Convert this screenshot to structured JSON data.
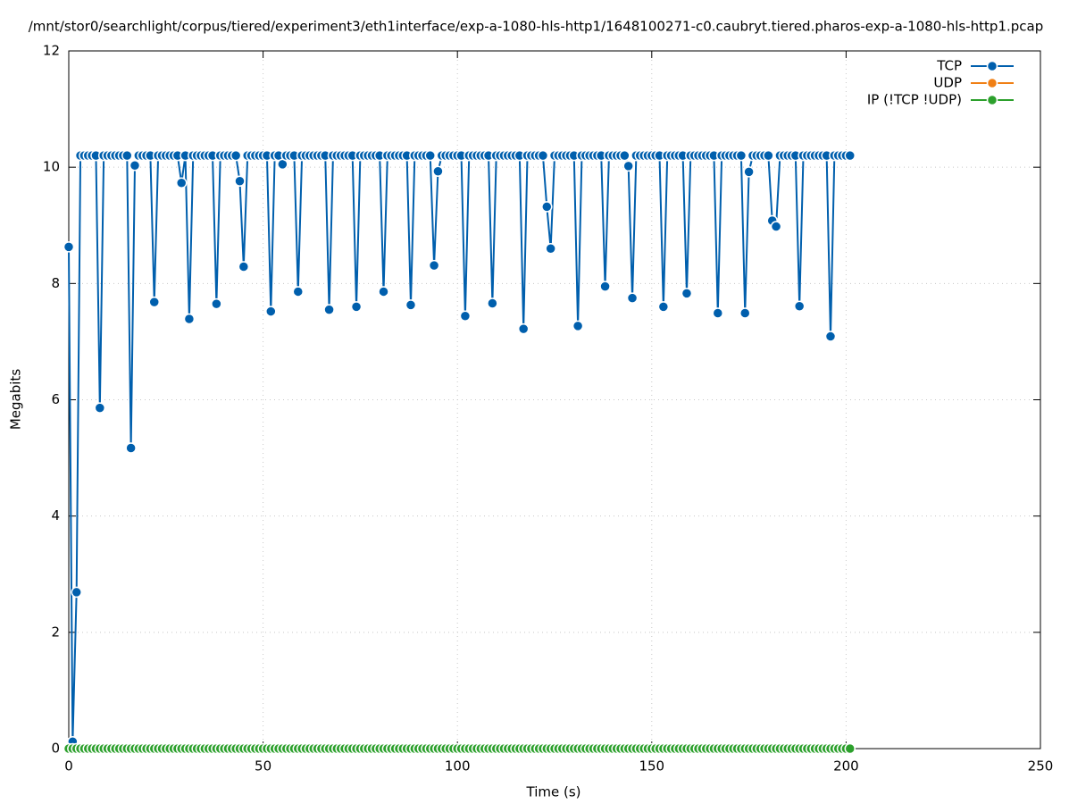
{
  "chart_data": {
    "type": "line",
    "title": "/mnt/stor0/searchlight/corpus/tiered/experiment3/eth1interface/exp-a-1080-hls-http1/1648100271-c0.caubryt.tiered.pharos-exp-a-1080-hls-http1.pcap",
    "x_label": "Time (s)",
    "y_label": "Megabits",
    "xlim": [
      0,
      250
    ],
    "xticks": [
      0,
      50,
      100,
      150,
      200,
      250
    ],
    "ylim": [
      0,
      12
    ],
    "yticks": [
      0,
      2,
      4,
      6,
      8,
      10,
      12
    ],
    "grid": true,
    "legend": "top-right",
    "x": [
      0,
      1,
      2,
      3,
      4,
      5,
      6,
      7,
      8,
      9,
      10,
      11,
      12,
      13,
      14,
      15,
      16,
      17,
      18,
      19,
      20,
      21,
      22,
      23,
      24,
      25,
      26,
      27,
      28,
      29,
      30,
      31,
      32,
      33,
      34,
      35,
      36,
      37,
      38,
      39,
      40,
      41,
      42,
      43,
      44,
      45,
      46,
      47,
      48,
      49,
      50,
      51,
      52,
      53,
      54,
      55,
      56,
      57,
      58,
      59,
      60,
      61,
      62,
      63,
      64,
      65,
      66,
      67,
      68,
      69,
      70,
      71,
      72,
      73,
      74,
      75,
      76,
      77,
      78,
      79,
      80,
      81,
      82,
      83,
      84,
      85,
      86,
      87,
      88,
      89,
      90,
      91,
      92,
      93,
      94,
      95,
      96,
      97,
      98,
      99,
      100,
      101,
      102,
      103,
      104,
      105,
      106,
      107,
      108,
      109,
      110,
      111,
      112,
      113,
      114,
      115,
      116,
      117,
      118,
      119,
      120,
      121,
      122,
      123,
      124,
      125,
      126,
      127,
      128,
      129,
      130,
      131,
      132,
      133,
      134,
      135,
      136,
      137,
      138,
      139,
      140,
      141,
      142,
      143,
      144,
      145,
      146,
      147,
      148,
      149,
      150,
      151,
      152,
      153,
      154,
      155,
      156,
      157,
      158,
      159,
      160,
      161,
      162,
      163,
      164,
      165,
      166,
      167,
      168,
      169,
      170,
      171,
      172,
      173,
      174,
      175,
      176,
      177,
      178,
      179,
      180,
      181,
      182,
      183,
      184,
      185,
      186,
      187,
      188,
      189,
      190,
      191,
      192,
      193,
      194,
      195,
      196,
      197,
      198,
      199,
      200,
      201
    ],
    "series": [
      {
        "name": "TCP",
        "color": "#005fad",
        "values": [
          8.63,
          0.12,
          2.69,
          10.2,
          10.2,
          10.2,
          10.2,
          10.2,
          5.86,
          10.2,
          10.2,
          10.2,
          10.2,
          10.2,
          10.2,
          10.2,
          5.17,
          10.03,
          10.2,
          10.2,
          10.2,
          10.2,
          7.68,
          10.2,
          10.2,
          10.2,
          10.2,
          10.2,
          10.2,
          9.73,
          10.2,
          7.39,
          10.2,
          10.2,
          10.2,
          10.2,
          10.2,
          10.2,
          7.65,
          10.2,
          10.2,
          10.2,
          10.2,
          10.2,
          9.76,
          8.29,
          10.2,
          10.2,
          10.2,
          10.2,
          10.2,
          10.2,
          7.52,
          10.2,
          10.2,
          10.05,
          10.2,
          10.2,
          10.2,
          7.86,
          10.2,
          10.2,
          10.2,
          10.2,
          10.2,
          10.2,
          10.2,
          7.55,
          10.2,
          10.2,
          10.2,
          10.2,
          10.2,
          10.2,
          7.6,
          10.2,
          10.2,
          10.2,
          10.2,
          10.2,
          10.2,
          7.86,
          10.2,
          10.2,
          10.2,
          10.2,
          10.2,
          10.2,
          7.63,
          10.2,
          10.2,
          10.2,
          10.2,
          10.2,
          8.31,
          9.93,
          10.2,
          10.2,
          10.2,
          10.2,
          10.2,
          10.2,
          7.44,
          10.2,
          10.2,
          10.2,
          10.2,
          10.2,
          10.2,
          7.66,
          10.2,
          10.2,
          10.2,
          10.2,
          10.2,
          10.2,
          10.2,
          7.22,
          10.2,
          10.2,
          10.2,
          10.2,
          10.2,
          9.32,
          8.6,
          10.2,
          10.2,
          10.2,
          10.2,
          10.2,
          10.2,
          7.27,
          10.2,
          10.2,
          10.2,
          10.2,
          10.2,
          10.2,
          7.95,
          10.2,
          10.2,
          10.2,
          10.2,
          10.2,
          10.02,
          7.75,
          10.2,
          10.2,
          10.2,
          10.2,
          10.2,
          10.2,
          10.2,
          7.6,
          10.2,
          10.2,
          10.2,
          10.2,
          10.2,
          7.83,
          10.2,
          10.2,
          10.2,
          10.2,
          10.2,
          10.2,
          10.2,
          7.49,
          10.2,
          10.2,
          10.2,
          10.2,
          10.2,
          10.2,
          7.49,
          9.92,
          10.2,
          10.2,
          10.2,
          10.2,
          10.2,
          9.08,
          8.98,
          10.2,
          10.2,
          10.2,
          10.2,
          10.2,
          7.61,
          10.2,
          10.2,
          10.2,
          10.2,
          10.2,
          10.2,
          10.2,
          7.09,
          10.2,
          10.2,
          10.2,
          10.2,
          10.2
        ]
      },
      {
        "name": "UDP",
        "color": "#f07f14",
        "values": [
          null,
          null,
          null,
          null,
          null,
          null,
          null,
          null,
          null,
          null,
          null,
          null,
          null,
          null,
          null,
          null,
          null,
          null,
          null,
          null,
          null,
          null,
          null,
          null,
          null,
          null,
          null,
          null,
          null,
          null,
          null,
          null,
          null,
          null,
          null,
          null,
          null,
          null,
          null,
          null,
          null,
          null,
          null,
          null,
          null,
          null,
          null,
          null,
          null,
          null,
          null,
          null,
          null,
          null,
          null,
          null,
          null,
          null,
          null,
          null,
          null,
          null,
          null,
          null,
          null,
          null,
          null,
          null,
          null,
          null,
          null,
          null,
          null,
          null,
          null,
          null,
          null,
          null,
          null,
          null,
          null,
          null,
          null,
          null,
          null,
          null,
          null,
          null,
          null,
          null,
          null,
          null,
          null,
          null,
          null,
          null,
          null,
          null,
          null,
          null,
          null,
          null,
          null,
          null,
          null,
          null,
          null,
          null,
          null,
          null,
          null,
          null,
          null,
          null,
          null,
          null,
          null,
          null,
          null,
          null,
          null,
          null,
          null,
          null,
          null,
          null,
          null,
          null,
          null,
          null,
          null,
          null,
          null,
          null,
          null,
          null,
          null,
          null,
          null,
          null,
          null,
          null,
          null,
          null,
          null,
          null,
          null,
          null,
          null,
          null,
          null,
          null,
          null,
          null,
          null,
          null,
          null,
          null,
          null,
          null,
          null,
          null,
          null,
          null,
          null,
          null,
          null,
          null,
          null,
          null,
          null,
          null,
          null,
          null,
          null,
          null,
          null,
          null,
          null,
          null,
          null,
          null,
          null,
          null,
          null,
          null,
          null,
          null,
          null,
          null,
          null,
          null,
          null,
          null,
          null,
          null,
          null,
          null,
          null,
          null,
          null,
          null
        ]
      },
      {
        "name": "IP (!TCP  !UDP)",
        "color": "#2ca02c",
        "values": [
          0,
          0,
          0,
          0,
          0,
          0,
          0,
          0,
          0,
          0,
          0,
          0,
          0,
          0,
          0,
          0,
          0,
          0,
          0,
          0,
          0,
          0,
          0,
          0,
          0,
          0,
          0,
          0,
          0,
          0,
          0,
          0,
          0,
          0,
          0,
          0,
          0,
          0,
          0,
          0,
          0,
          0,
          0,
          0,
          0,
          0,
          0,
          0,
          0,
          0,
          0,
          0,
          0,
          0,
          0,
          0,
          0,
          0,
          0,
          0,
          0,
          0,
          0,
          0,
          0,
          0,
          0,
          0,
          0,
          0,
          0,
          0,
          0,
          0,
          0,
          0,
          0,
          0,
          0,
          0,
          0,
          0,
          0,
          0,
          0,
          0,
          0,
          0,
          0,
          0,
          0,
          0,
          0,
          0,
          0,
          0,
          0,
          0,
          0,
          0,
          0,
          0,
          0,
          0,
          0,
          0,
          0,
          0,
          0,
          0,
          0,
          0,
          0,
          0,
          0,
          0,
          0,
          0,
          0,
          0,
          0,
          0,
          0,
          0,
          0,
          0,
          0,
          0,
          0,
          0,
          0,
          0,
          0,
          0,
          0,
          0,
          0,
          0,
          0,
          0,
          0,
          0,
          0,
          0,
          0,
          0,
          0,
          0,
          0,
          0,
          0,
          0,
          0,
          0,
          0,
          0,
          0,
          0,
          0,
          0,
          0,
          0,
          0,
          0,
          0,
          0,
          0,
          0,
          0,
          0,
          0,
          0,
          0,
          0,
          0,
          0,
          0,
          0,
          0,
          0,
          0,
          0,
          0,
          0,
          0,
          0,
          0,
          0,
          0,
          0,
          0,
          0,
          0,
          0,
          0,
          0,
          0,
          0,
          0,
          0,
          0,
          0
        ]
      }
    ]
  }
}
